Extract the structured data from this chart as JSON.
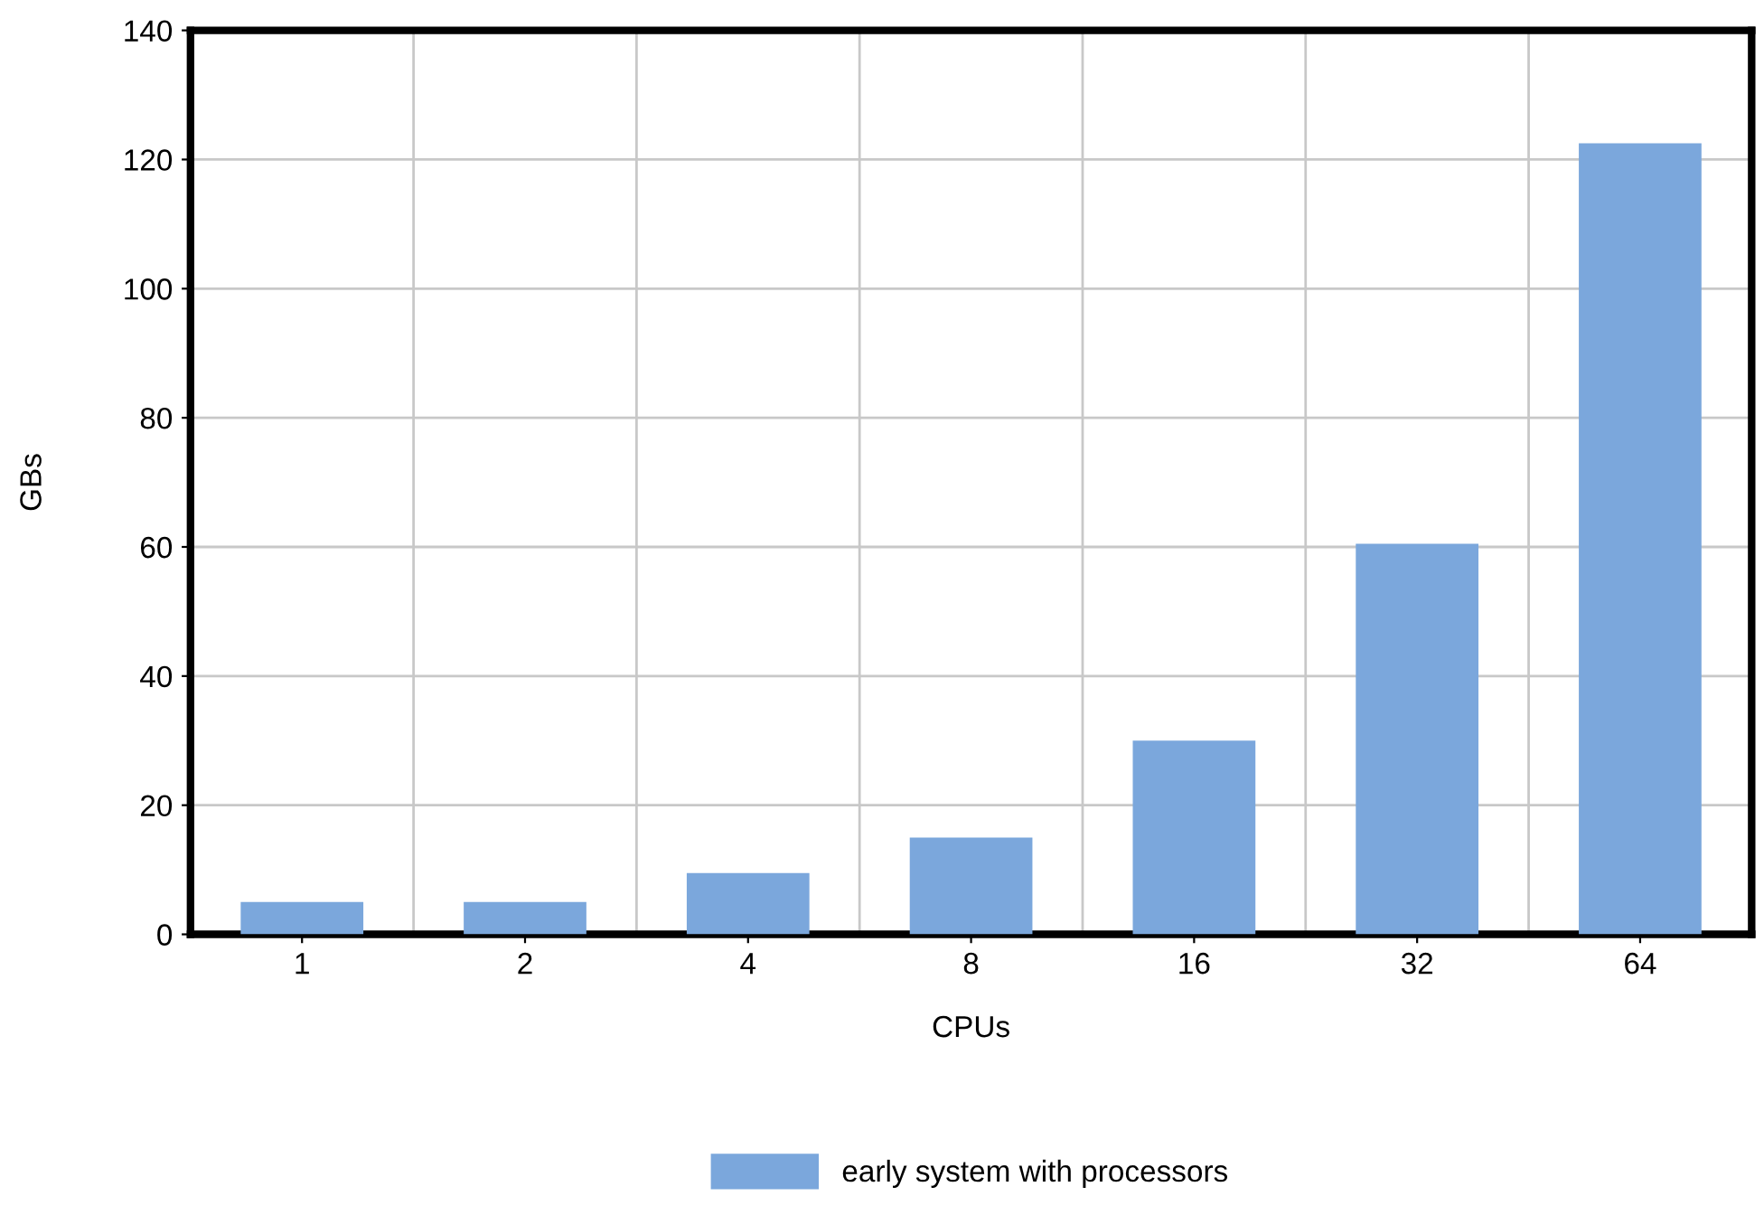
{
  "chart_data": {
    "type": "bar",
    "xlabel": "CPUs",
    "ylabel": "GBs",
    "categories": [
      "1",
      "2",
      "4",
      "8",
      "16",
      "32",
      "64"
    ],
    "series": [
      {
        "name": "early system with processors",
        "color": "#7ba7dc",
        "values": [
          5,
          5,
          9.5,
          15,
          30,
          60.5,
          122.5
        ]
      }
    ],
    "ylim": [
      0,
      140
    ],
    "yticks": [
      0,
      20,
      40,
      60,
      80,
      100,
      120,
      140
    ],
    "grid": true,
    "legend": "bottom"
  }
}
